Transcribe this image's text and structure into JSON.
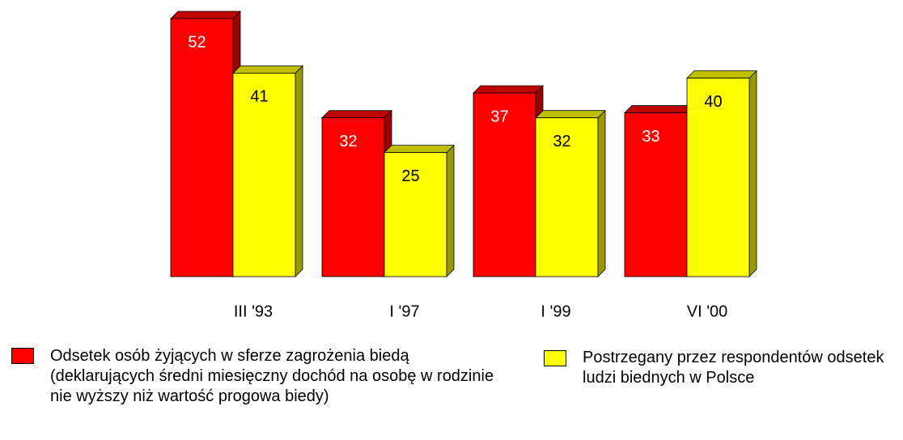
{
  "chart_data": {
    "type": "bar",
    "categories": [
      "III '93",
      "I '97",
      "I '99",
      "VI '00"
    ],
    "series": [
      {
        "name": "Odsetek osób żyjących w sferze zagrożenia biedą (deklarujących średni miesięczny dochód na osobę w rodzinie nie wyższy niż wartość progowa biedy)",
        "color": "#ff0000",
        "values": [
          52,
          32,
          37,
          33
        ]
      },
      {
        "name": "Postrzegany przez respondentów odsetek ludzi biednych w Polsce",
        "color": "#ffff00",
        "values": [
          41,
          25,
          32,
          40
        ]
      }
    ]
  }
}
